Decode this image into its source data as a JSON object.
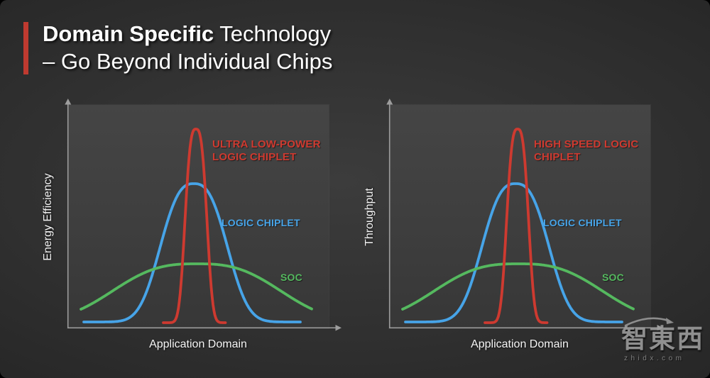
{
  "slide": {
    "title": {
      "line1_bold": "Domain Specific",
      "line1_rest": "Technology",
      "line2": "– Go Beyond Individual Chips"
    },
    "accent_color": "#bf3a30",
    "background_color": "#2f2f2f"
  },
  "watermark": {
    "logo_text": "智東西",
    "domain": "zhidx.com"
  },
  "axes": {
    "color": "#9d9d9d",
    "ticks": "none",
    "arrowheads": true
  },
  "chart_data": [
    {
      "type": "line",
      "title": "",
      "xlabel": "Application Domain",
      "ylabel": "Energy Efficiency",
      "grid": false,
      "legend_position": "inline-annotations",
      "axis_ranges": "qualitative (no tick values shown)",
      "shape_units": "plot pixels, 368 wide x 315 tall, y increases downward",
      "series": [
        {
          "id": "ultra-low-power-logic-chiplet",
          "name": "ULTRA LOW-POWER LOGIC CHIPLET",
          "label_lines": [
            "ULTRA LOW-POWER",
            "LOGIC CHIPLET"
          ],
          "color": "#ce3a30",
          "z": 3,
          "shape": {
            "center": 181,
            "sigma": 18,
            "exponent": 3.0,
            "peak_y": 34,
            "base_y": 307,
            "x_start": 135,
            "x_end": 223
          }
        },
        {
          "id": "logic-chiplet",
          "name": "LOGIC CHIPLET",
          "label_lines": [
            "LOGIC CHIPLET"
          ],
          "color": "#47a4e8",
          "z": 1,
          "shape": {
            "center": 178,
            "sigma": 57,
            "exponent": 2.67,
            "peak_y": 111,
            "base_y": 306,
            "x_start": 23,
            "x_end": 329
          }
        },
        {
          "id": "soc",
          "name": "SOC",
          "label_lines": [
            "SOC"
          ],
          "color": "#55b95f",
          "z": 2,
          "shape": {
            "center": 182,
            "sigma": 139,
            "exponent": 2.8,
            "peak_y": 224,
            "base_y": 305,
            "x_start": 19,
            "x_end": 344
          }
        }
      ]
    },
    {
      "type": "line",
      "title": "",
      "xlabel": "Application Domain",
      "ylabel": "Throughput",
      "grid": false,
      "legend_position": "inline-annotations",
      "axis_ranges": "qualitative (no tick values shown)",
      "shape_units": "plot pixels, 368 wide x 315 tall, y increases downward",
      "series": [
        {
          "id": "high-speed-logic-chiplet",
          "name": "HIGH SPEED LOGIC CHIPLET",
          "label_lines": [
            "HIGH SPEED LOGIC",
            "CHIPLET"
          ],
          "color": "#ce3a30",
          "z": 3,
          "shape": {
            "center": 181,
            "sigma": 18,
            "exponent": 3.0,
            "peak_y": 34,
            "base_y": 307,
            "x_start": 135,
            "x_end": 223
          }
        },
        {
          "id": "logic-chiplet",
          "name": "LOGIC CHIPLET",
          "label_lines": [
            "LOGIC CHIPLET"
          ],
          "color": "#47a4e8",
          "z": 1,
          "shape": {
            "center": 178,
            "sigma": 57,
            "exponent": 2.67,
            "peak_y": 111,
            "base_y": 306,
            "x_start": 23,
            "x_end": 329
          }
        },
        {
          "id": "soc",
          "name": "SOC",
          "label_lines": [
            "SOC"
          ],
          "color": "#55b95f",
          "z": 2,
          "shape": {
            "center": 182,
            "sigma": 139,
            "exponent": 2.8,
            "peak_y": 224,
            "base_y": 305,
            "x_start": 19,
            "x_end": 344
          }
        }
      ]
    }
  ]
}
